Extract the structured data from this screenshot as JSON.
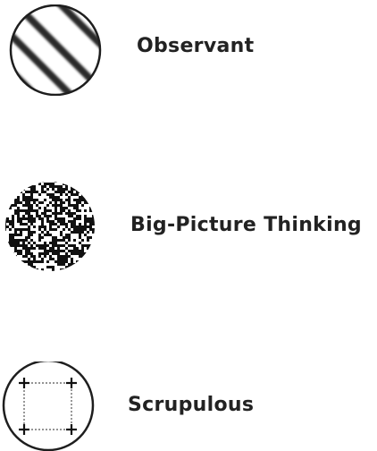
{
  "items": [
    {
      "label": "Observant",
      "icon": "diagonal-stripes-icon"
    },
    {
      "label": "Big-Picture Thinking",
      "icon": "noise-circle-icon"
    },
    {
      "label": "Scrupulous",
      "icon": "crosshair-square-icon"
    }
  ],
  "colors": {
    "ink": "#222222",
    "stripe": "#2a2a2a",
    "background": "#ffffff"
  }
}
